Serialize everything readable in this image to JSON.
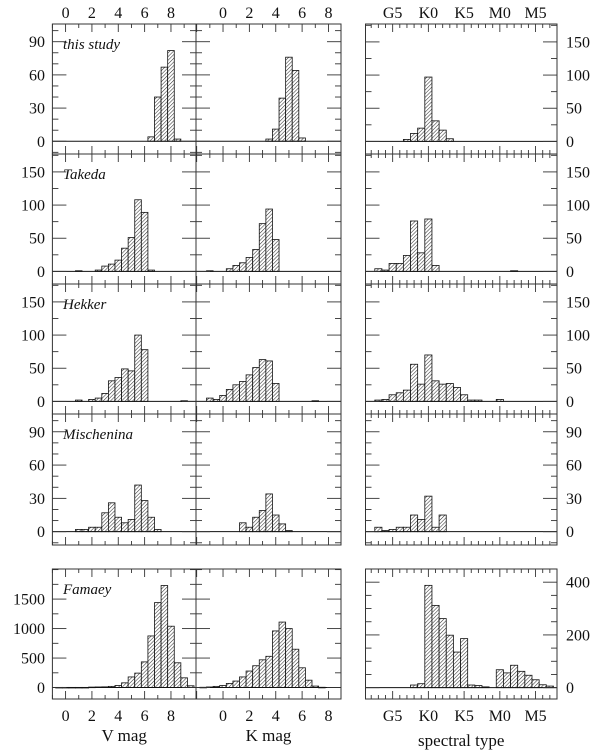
{
  "chart_data": {
    "type": "bar",
    "subtype": "histogram-grid",
    "axes": {
      "V": {
        "label": "V mag",
        "xlim": [
          -1,
          9.9
        ],
        "ticks": [
          0,
          2,
          4,
          6,
          8
        ],
        "tick_labels": [
          "0",
          "2",
          "4",
          "6",
          "8"
        ],
        "bin_width": 0.5
      },
      "K": {
        "label": "K mag",
        "xlim": [
          -2.05,
          8.95
        ],
        "ticks": [
          0,
          2,
          4,
          6,
          8
        ],
        "tick_labels": [
          "0",
          "2",
          "4",
          "6",
          "8"
        ],
        "bin_width": 0.5
      },
      "S": {
        "label": "spectral type",
        "xlim": [
          11.2,
          38
        ],
        "ticks": [
          15,
          20,
          25,
          30,
          35
        ],
        "tick_labels": [
          "G5",
          "K0",
          "K5",
          "M0",
          "M5"
        ],
        "bin_width": 1
      }
    },
    "panels": [
      {
        "name": "this study",
        "left_axis": {
          "ylim": [
            -11.5,
            106
          ],
          "ticks": [
            0,
            30,
            60,
            90
          ],
          "minor": 10
        },
        "right_axis": {
          "ylim": [
            -19,
            177
          ],
          "ticks": [
            0,
            50,
            100,
            150
          ],
          "minor": 25
        },
        "V": {
          "bin_lo": [
            6.25,
            6.75,
            7.25,
            7.75,
            8.25
          ],
          "counts": [
            4,
            40,
            67,
            82,
            2
          ]
        },
        "K": {
          "bin_lo": [
            3.25,
            3.75,
            4.25,
            4.75,
            5.25,
            5.75
          ],
          "counts": [
            2,
            11,
            39,
            76,
            64,
            3
          ]
        },
        "S": {
          "bin_center": [
            17,
            18,
            19,
            20,
            21,
            22,
            23
          ],
          "counts": [
            3,
            12,
            20,
            97,
            31,
            17,
            4
          ]
        }
      },
      {
        "name": "Takeda",
        "left_axis": {
          "ylim": [
            -19,
            177
          ],
          "ticks": [
            0,
            50,
            100,
            150
          ],
          "minor": 25
        },
        "right_axis": {
          "ylim": [
            -19,
            177
          ],
          "ticks": [
            0,
            50,
            100,
            150
          ],
          "minor": 25
        },
        "V": {
          "bin_lo": [
            0.75,
            2.25,
            2.75,
            3.25,
            3.75,
            4.25,
            4.75,
            5.25,
            5.75,
            6.25
          ],
          "counts": [
            1,
            2,
            8,
            11,
            17,
            35,
            51,
            108,
            89,
            2
          ]
        },
        "K": {
          "bin_lo": [
            -1.25,
            0.25,
            0.75,
            1.25,
            1.75,
            2.25,
            2.75,
            3.25,
            3.75
          ],
          "counts": [
            1,
            4,
            9,
            13,
            21,
            33,
            72,
            94,
            48
          ]
        },
        "S": {
          "bin_center": [
            13,
            14,
            15,
            16,
            17,
            18,
            19,
            20,
            21,
            32
          ],
          "counts": [
            4,
            2,
            12,
            12,
            24,
            76,
            28,
            79,
            9,
            1
          ]
        }
      },
      {
        "name": "Hekker",
        "left_axis": {
          "ylim": [
            -19,
            177
          ],
          "ticks": [
            0,
            50,
            100,
            150
          ],
          "minor": 25
        },
        "right_axis": {
          "ylim": [
            -19,
            177
          ],
          "ticks": [
            0,
            50,
            100,
            150
          ],
          "minor": 25
        },
        "V": {
          "bin_lo": [
            0.75,
            1.75,
            2.25,
            2.75,
            3.25,
            3.75,
            4.25,
            4.75,
            5.25,
            5.75,
            8.75
          ],
          "counts": [
            2,
            3,
            5,
            12,
            31,
            36,
            49,
            46,
            100,
            78,
            1
          ]
        },
        "K": {
          "bin_lo": [
            -1.25,
            -0.75,
            -0.25,
            0.25,
            0.75,
            1.25,
            1.75,
            2.25,
            2.75,
            3.25,
            3.75,
            6.75
          ],
          "counts": [
            5,
            3,
            9,
            18,
            25,
            30,
            40,
            51,
            63,
            61,
            27,
            1
          ]
        },
        "S": {
          "bin_center": [
            13,
            14,
            15,
            16,
            17,
            18,
            19,
            20,
            21,
            22,
            23,
            24,
            25,
            26,
            27,
            30
          ],
          "counts": [
            2,
            3,
            10,
            13,
            17,
            56,
            26,
            70,
            31,
            26,
            27,
            21,
            10,
            2,
            2,
            3
          ]
        }
      },
      {
        "name": "Mischenina",
        "left_axis": {
          "ylim": [
            -12,
            106
          ],
          "ticks": [
            0,
            30,
            60,
            90
          ],
          "minor": 10
        },
        "right_axis": {
          "ylim": [
            -12,
            106
          ],
          "ticks": [
            0,
            30,
            60,
            90
          ],
          "minor": 10
        },
        "V": {
          "bin_lo": [
            0.75,
            1.25,
            1.75,
            2.25,
            2.75,
            3.25,
            3.75,
            4.25,
            4.75,
            5.25,
            5.75,
            6.25,
            6.75
          ],
          "counts": [
            2,
            2,
            4,
            4,
            17,
            26,
            13,
            8,
            11,
            42,
            28,
            13,
            2
          ]
        },
        "K": {
          "bin_lo": [
            1.25,
            1.75,
            2.25,
            2.75,
            3.25,
            3.75,
            4.25,
            4.75
          ],
          "counts": [
            8,
            4,
            13,
            19,
            34,
            15,
            7,
            1
          ]
        },
        "S": {
          "bin_center": [
            13,
            14,
            15,
            16,
            17,
            18,
            19,
            20,
            21,
            22
          ],
          "counts": [
            4,
            1,
            2,
            4,
            4,
            15,
            11,
            32,
            4,
            15
          ]
        }
      },
      {
        "name": "Famaey",
        "left_axis": {
          "ylim": [
            -194,
            2010
          ],
          "ticks": [
            0,
            500,
            1000,
            1500
          ],
          "minor": 250
        },
        "right_axis": {
          "ylim": [
            -43,
            450
          ],
          "ticks": [
            0,
            200,
            400
          ],
          "minor": 50
        },
        "V": {
          "bin_lo": [
            -0.75,
            -0.25,
            0.25,
            0.75,
            1.25,
            1.75,
            2.25,
            2.75,
            3.25,
            3.75,
            4.25,
            4.75,
            5.25,
            5.75,
            6.25,
            6.75,
            7.25,
            7.75,
            8.25,
            8.75,
            9.25
          ],
          "counts": [
            3,
            3,
            3,
            3,
            3,
            8,
            10,
            12,
            20,
            35,
            80,
            180,
            245,
            435,
            875,
            1440,
            1730,
            1040,
            420,
            165,
            30
          ]
        },
        "K": {
          "bin_lo": [
            -1.75,
            -1.25,
            -0.75,
            -0.25,
            0.25,
            0.75,
            1.25,
            1.75,
            2.25,
            2.75,
            3.25,
            3.75,
            4.25,
            4.75,
            5.25,
            5.75,
            6.25,
            6.75,
            7.25
          ],
          "counts": [
            5,
            10,
            20,
            35,
            70,
            110,
            180,
            280,
            370,
            470,
            530,
            960,
            1110,
            1000,
            650,
            335,
            125,
            25,
            5
          ]
        },
        "S": {
          "bin_center": [
            18,
            19,
            20,
            21,
            22,
            23,
            24,
            25,
            26,
            27,
            28,
            29,
            30,
            31,
            32,
            33,
            34,
            35,
            36,
            37
          ],
          "counts": [
            10,
            15,
            388,
            312,
            262,
            199,
            135,
            186,
            10,
            8,
            3,
            0,
            68,
            56,
            85,
            62,
            47,
            30,
            11,
            6
          ]
        }
      }
    ]
  }
}
